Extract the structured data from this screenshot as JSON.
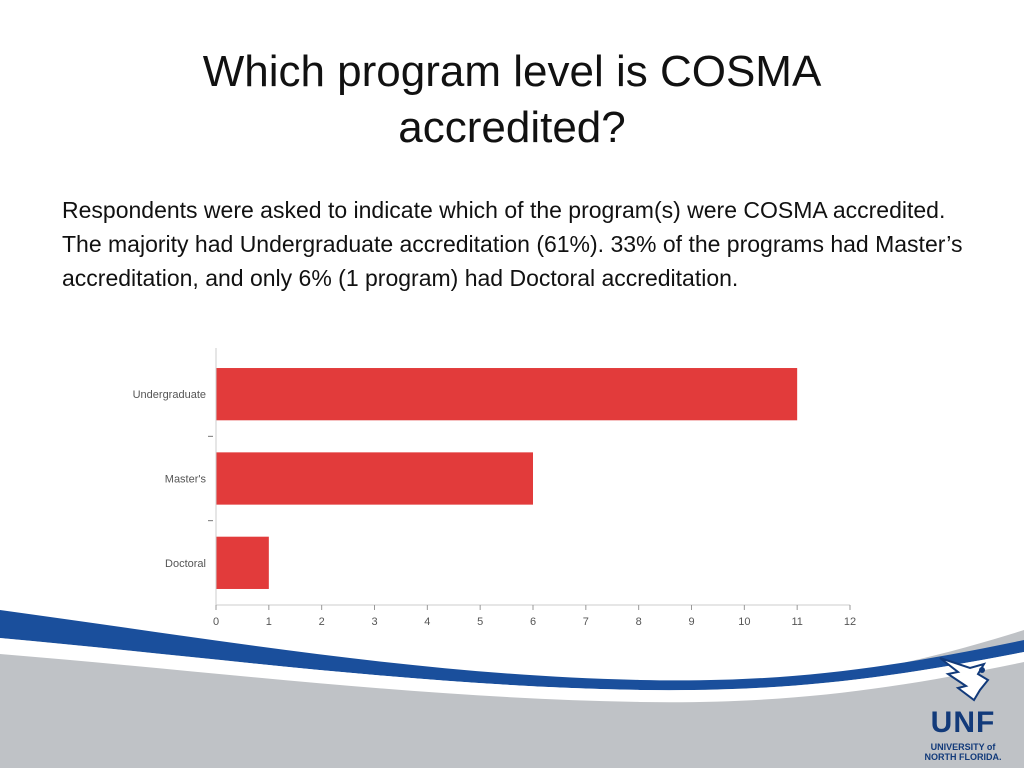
{
  "slide": {
    "title_line1": "Which program level is COSMA",
    "title_line2": "accredited?",
    "body": "Respondents were asked to indicate which of the program(s) were COSMA accredited. The majority had Undergraduate accreditation (61%).  33% of the programs had Master’s accreditation, and only 6% (1 program) had Doctoral accreditation."
  },
  "chart_data": {
    "type": "bar",
    "orientation": "horizontal",
    "categories": [
      "Undergraduate",
      "Master's",
      "Doctoral"
    ],
    "values": [
      11,
      6,
      1
    ],
    "xlim": [
      0,
      12
    ],
    "xticks": [
      0,
      1,
      2,
      3,
      4,
      5,
      6,
      7,
      8,
      9,
      10,
      11,
      12
    ],
    "bar_color": "#e23b3b",
    "grid": false
  },
  "logo": {
    "text": "UNF",
    "line1": "UNIVERSITY of",
    "line2": "NORTH FLORIDA."
  },
  "colors": {
    "footer_blue": "#1a4f9c",
    "footer_gray": "#bfc2c6"
  }
}
